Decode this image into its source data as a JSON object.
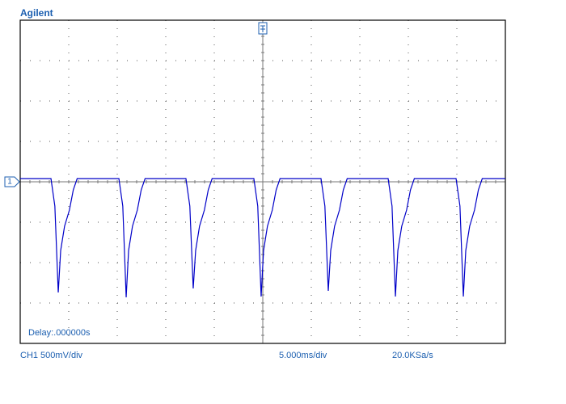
{
  "chart_data": {
    "type": "line",
    "brand": "Agilent",
    "delay": "Delay:.000000s",
    "channel_scale": "CH1 500mV/div",
    "timebase": "5.000ms/div",
    "sample_rate": "20.0KSa/s",
    "channel_marker": "1",
    "xlim": [
      -25,
      25
    ],
    "ylim": [
      -2,
      2
    ],
    "xticks": [
      -25,
      -20,
      -15,
      -10,
      -5,
      0,
      5,
      10,
      15,
      20,
      25
    ],
    "yticks": [
      -2,
      -1.5,
      -1,
      -0.5,
      0,
      0.5,
      1,
      1.5,
      2
    ],
    "grid": true,
    "x": [
      -25,
      -21.83,
      -21.43,
      -21.08,
      -20.83,
      -20.43,
      -19.93,
      -19.53,
      -19.13,
      -14.83,
      -14.43,
      -14.08,
      -13.83,
      -13.43,
      -12.93,
      -12.53,
      -12.13,
      -7.92,
      -7.52,
      -7.17,
      -6.92,
      -6.52,
      -6.02,
      -5.62,
      -5.22,
      -0.92,
      -0.52,
      -0.17,
      0.08,
      0.48,
      0.98,
      1.38,
      1.78,
      6.0,
      6.4,
      6.75,
      7.0,
      7.4,
      7.9,
      8.3,
      8.7,
      12.92,
      13.32,
      13.67,
      13.92,
      14.32,
      14.82,
      15.22,
      15.62,
      19.92,
      20.32,
      20.67,
      20.92,
      21.32,
      21.82,
      22.22,
      22.62,
      25
    ],
    "series": [
      {
        "color": "#0000c8",
        "values": [
          0.04,
          0.04,
          -0.3,
          -1.37,
          -0.85,
          -0.55,
          -0.35,
          -0.1,
          0.04,
          0.04,
          -0.3,
          -1.43,
          -0.85,
          -0.55,
          -0.35,
          -0.1,
          0.04,
          0.04,
          -0.3,
          -1.32,
          -0.85,
          -0.55,
          -0.35,
          -0.1,
          0.04,
          0.04,
          -0.3,
          -1.42,
          -0.85,
          -0.55,
          -0.35,
          -0.1,
          0.04,
          0.04,
          -0.3,
          -1.35,
          -0.85,
          -0.55,
          -0.35,
          -0.1,
          0.04,
          0.04,
          -0.3,
          -1.42,
          -0.85,
          -0.55,
          -0.35,
          -0.1,
          0.04,
          0.04,
          -0.3,
          -1.42,
          -0.85,
          -0.55,
          -0.35,
          -0.1,
          0.04,
          0.04
        ]
      }
    ]
  }
}
